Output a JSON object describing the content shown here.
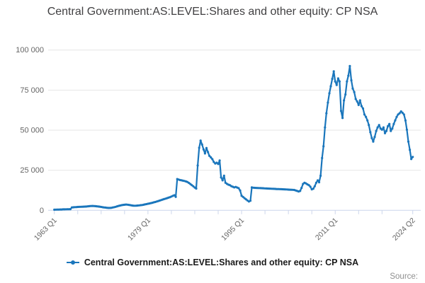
{
  "title": "Central Government:AS:LEVEL:Shares and other equity: CP NSA",
  "legend": {
    "label": "Central Government:AS:LEVEL:Shares and other equity: CP NSA"
  },
  "source_label": "Source:",
  "colors": {
    "line": "#1a76bc",
    "grid": "#e6e6e6",
    "axis": "#ccd6eb",
    "tick_label": "#666666",
    "title_text": "#414042",
    "source_text": "#8f8f8f"
  },
  "chart_data": {
    "type": "line",
    "title": "Central Government:AS:LEVEL:Shares and other equity: CP NSA",
    "xlabel": "",
    "ylabel": "",
    "frequency": "quarterly",
    "x_start_label": "1963 Q1",
    "x_end_label": "2024 Q2",
    "ylim": [
      0,
      100000
    ],
    "grid": true,
    "legend_position": "bottom",
    "yticks": [
      {
        "value": 0,
        "label": "0"
      },
      {
        "value": 25000,
        "label": "25 000"
      },
      {
        "value": 50000,
        "label": "50 000"
      },
      {
        "value": 75000,
        "label": "75 000"
      },
      {
        "value": 100000,
        "label": "100 000"
      }
    ],
    "xticks": [
      {
        "q": 0,
        "label": "1963 Q1"
      },
      {
        "q": 16,
        "label": ""
      },
      {
        "q": 32,
        "label": ""
      },
      {
        "q": 48,
        "label": ""
      },
      {
        "q": 64,
        "label": "1979 Q1"
      },
      {
        "q": 80,
        "label": ""
      },
      {
        "q": 96,
        "label": ""
      },
      {
        "q": 112,
        "label": ""
      },
      {
        "q": 128,
        "label": "1995 Q1"
      },
      {
        "q": 144,
        "label": ""
      },
      {
        "q": 160,
        "label": ""
      },
      {
        "q": 176,
        "label": ""
      },
      {
        "q": 192,
        "label": "2011 Q1"
      },
      {
        "q": 208,
        "label": ""
      },
      {
        "q": 224,
        "label": ""
      },
      {
        "q": 245,
        "label": "2024 Q2"
      }
    ],
    "series": [
      {
        "name": "Central Government:AS:LEVEL:Shares and other equity: CP NSA",
        "color": "#1a76bc",
        "start": "1963 Q1",
        "values": [
          400,
          450,
          500,
          500,
          550,
          550,
          600,
          600,
          650,
          700,
          700,
          750,
          1800,
          1900,
          2000,
          2050,
          2100,
          2150,
          2200,
          2250,
          2300,
          2350,
          2400,
          2500,
          2600,
          2700,
          2750,
          2700,
          2600,
          2500,
          2400,
          2300,
          2100,
          1950,
          1800,
          1700,
          1600,
          1500,
          1500,
          1600,
          1800,
          2000,
          2200,
          2500,
          2800,
          3000,
          3200,
          3400,
          3500,
          3600,
          3550,
          3400,
          3200,
          3050,
          2900,
          2850,
          2900,
          3000,
          3100,
          3200,
          3300,
          3500,
          3700,
          3900,
          4100,
          4300,
          4500,
          4700,
          5000,
          5200,
          5500,
          5800,
          6100,
          6400,
          6700,
          7000,
          7300,
          7600,
          7900,
          8200,
          8600,
          9000,
          9400,
          8400,
          19500,
          19200,
          18900,
          18700,
          18500,
          18300,
          18000,
          17700,
          17100,
          16400,
          15700,
          15000,
          14200,
          13600,
          28000,
          39000,
          43500,
          41000,
          38000,
          35500,
          38900,
          36300,
          34000,
          33000,
          31900,
          30200,
          29200,
          29700,
          28900,
          31100,
          20500,
          18700,
          21600,
          17200,
          16500,
          16000,
          15700,
          15100,
          14700,
          14300,
          14600,
          14200,
          13800,
          12400,
          9100,
          8400,
          7600,
          6900,
          6200,
          5500,
          6000,
          14300,
          14100,
          14050,
          14000,
          13950,
          13900,
          13850,
          13800,
          13750,
          13700,
          13650,
          13600,
          13550,
          13500,
          13450,
          13400,
          13350,
          13300,
          13300,
          13250,
          13200,
          13150,
          13100,
          13050,
          13000,
          12950,
          12900,
          12850,
          12800,
          12700,
          12400,
          12100,
          11800,
          12100,
          14000,
          16450,
          17200,
          16800,
          16200,
          15700,
          14800,
          13100,
          13500,
          15000,
          17200,
          18650,
          17500,
          21600,
          32600,
          40000,
          51700,
          60550,
          67200,
          73000,
          77400,
          82000,
          86700,
          80400,
          78200,
          82300,
          80400,
          62000,
          57600,
          68600,
          72300,
          80400,
          84000,
          90000,
          81100,
          76000,
          73800,
          69400,
          67900,
          65700,
          68600,
          65000,
          63500,
          59800,
          58300,
          56100,
          53200,
          48800,
          45100,
          42900,
          45800,
          49500,
          51700,
          53200,
          51000,
          50300,
          51700,
          48100,
          49500,
          52500,
          53900,
          49500,
          51000,
          53900,
          56100,
          58300,
          59800,
          60550,
          61700,
          60850,
          59800,
          56100,
          50300,
          42900,
          37750,
          32000,
          33300
        ]
      }
    ]
  }
}
